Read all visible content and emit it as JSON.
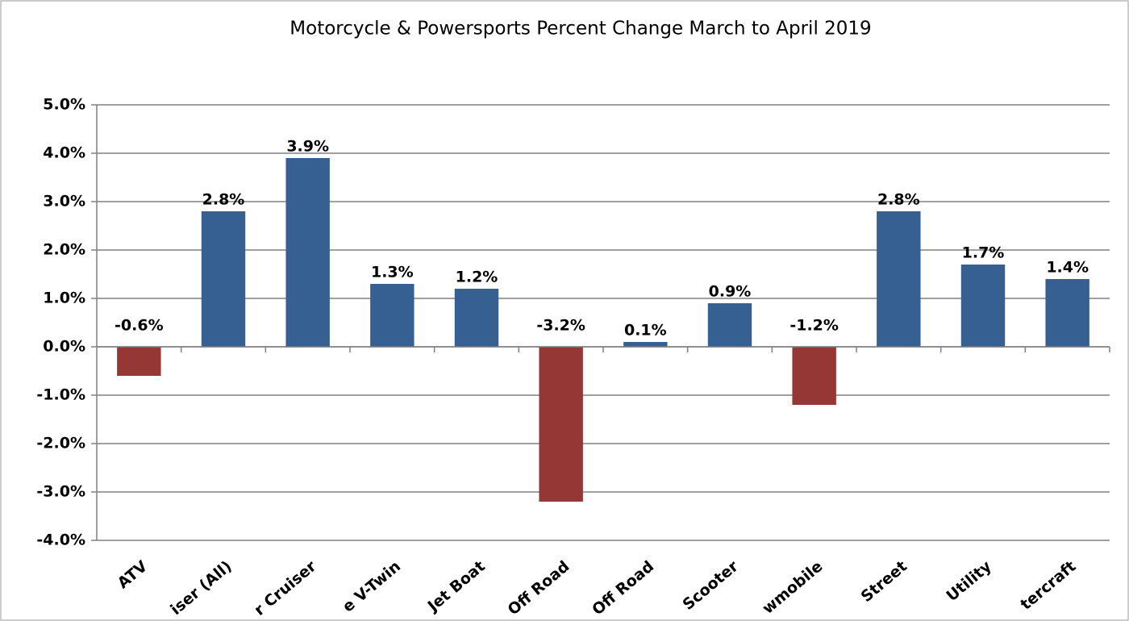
{
  "chart_data": {
    "type": "bar",
    "title": "Motorcycle & Powersports Percent Change March to April 2019",
    "categories": [
      "ATV",
      "iser (All)",
      "r Cruiser",
      "e V-Twin",
      "Jet Boat",
      "Off Road",
      "Off Road",
      "Scooter",
      "wmobile",
      "Street",
      "Utility",
      "tercraft"
    ],
    "values": [
      -0.6,
      2.8,
      3.9,
      1.3,
      1.2,
      -3.2,
      0.1,
      0.9,
      -1.2,
      2.8,
      1.7,
      1.4
    ],
    "value_labels": [
      "-0.6%",
      "2.8%",
      "3.9%",
      "1.3%",
      "1.2%",
      "-3.2%",
      "0.1%",
      "0.9%",
      "-1.2%",
      "2.8%",
      "1.7%",
      "1.4%"
    ],
    "color": "#376092",
    "negative_color": "#953735",
    "ylim": [
      -4,
      5
    ],
    "yticks": [
      {
        "value": -4,
        "label": "-4.0%"
      },
      {
        "value": -3,
        "label": "-3.0%"
      },
      {
        "value": -2,
        "label": "-2.0%"
      },
      {
        "value": -1,
        "label": "-1.0%"
      },
      {
        "value": 0,
        "label": "0.0%"
      },
      {
        "value": 1,
        "label": "1.0%"
      },
      {
        "value": 2,
        "label": "2.0%"
      },
      {
        "value": 3,
        "label": "3.0%"
      },
      {
        "value": 4,
        "label": "4.0%"
      },
      {
        "value": 5,
        "label": "5.0%"
      }
    ],
    "grid": true
  }
}
